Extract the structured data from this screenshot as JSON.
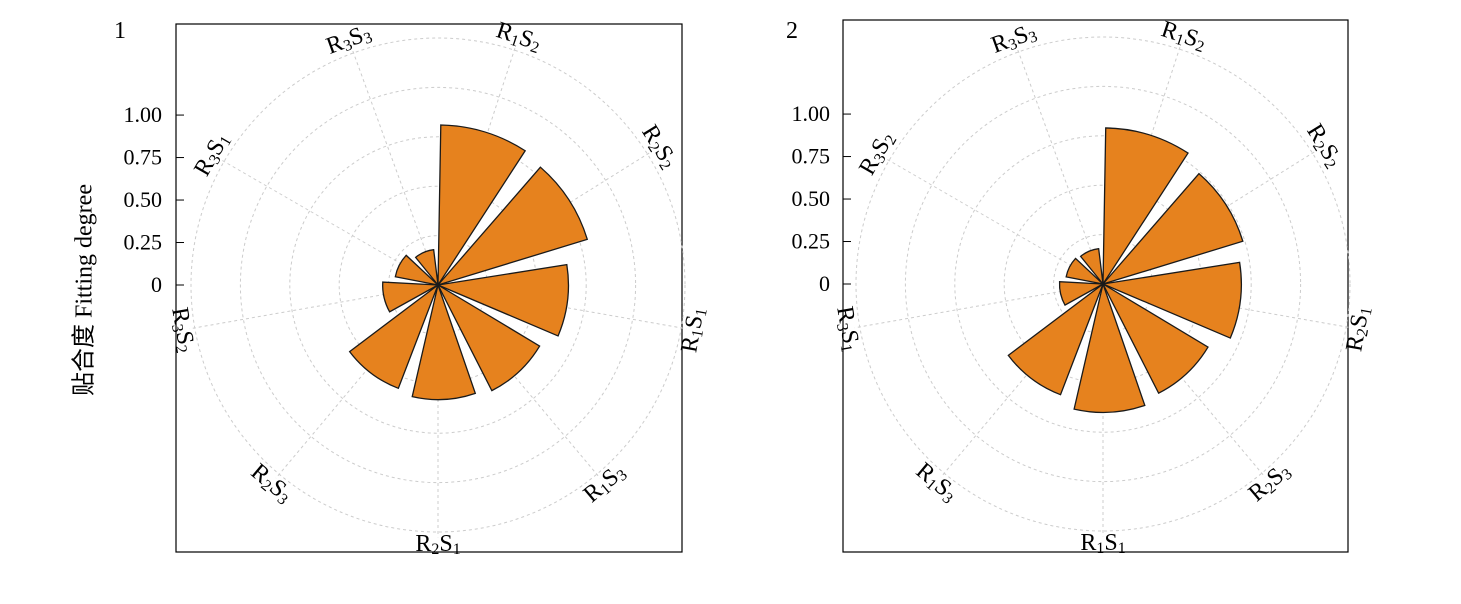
{
  "ylabel": "贴合度 Fitting degree",
  "colors": {
    "wedge_fill": "#E6821E",
    "wedge_stroke": "#1a1a1a",
    "grid": "#cccccc",
    "frame": "#000000"
  },
  "chart_data": [
    {
      "type": "polar-bar",
      "panel_label": "1",
      "radial_ticks": [
        "0",
        "0.25",
        "0.50",
        "0.75",
        "1.00"
      ],
      "radial_tick_values": [
        0,
        0.25,
        0.5,
        0.75,
        1.0
      ],
      "rlim": [
        0,
        1.0
      ],
      "grid": true,
      "categories": [
        "R1S2",
        "R2S2",
        "R1S1",
        "R1S3",
        "R2S1",
        "R2S3",
        "R3S2",
        "R3S1",
        "R3S3"
      ],
      "category_labels": [
        {
          "base1": "R",
          "sub1": "1",
          "base2": "S",
          "sub2": "2"
        },
        {
          "base1": "R",
          "sub1": "2",
          "base2": "S",
          "sub2": "2"
        },
        {
          "base1": "R",
          "sub1": "1",
          "base2": "S",
          "sub2": "1"
        },
        {
          "base1": "R",
          "sub1": "1",
          "base2": "S",
          "sub2": "3"
        },
        {
          "base1": "R",
          "sub1": "2",
          "base2": "S",
          "sub2": "1"
        },
        {
          "base1": "R",
          "sub1": "2",
          "base2": "S",
          "sub2": "3"
        },
        {
          "base1": "R",
          "sub1": "3",
          "base2": "S",
          "sub2": "2"
        },
        {
          "base1": "R",
          "sub1": "3",
          "base2": "S",
          "sub2": "1"
        },
        {
          "base1": "R",
          "sub1": "3",
          "base2": "S",
          "sub2": "3"
        }
      ],
      "values": [
        0.81,
        0.79,
        0.66,
        0.6,
        0.58,
        0.56,
        0.28,
        0.22,
        0.18
      ]
    },
    {
      "type": "polar-bar",
      "panel_label": "2",
      "radial_ticks": [
        "0",
        "0.25",
        "0.50",
        "0.75",
        "1.00"
      ],
      "radial_tick_values": [
        0,
        0.25,
        0.5,
        0.75,
        1.0
      ],
      "rlim": [
        0,
        1.0
      ],
      "grid": true,
      "categories": [
        "R1S2",
        "R2S2",
        "R2S1",
        "R2S3",
        "R1S1",
        "R1S3",
        "R3S1",
        "R3S2",
        "R3S3"
      ],
      "category_labels": [
        {
          "base1": "R",
          "sub1": "1",
          "base2": "S",
          "sub2": "2"
        },
        {
          "base1": "R",
          "sub1": "2",
          "base2": "S",
          "sub2": "2"
        },
        {
          "base1": "R",
          "sub1": "2",
          "base2": "S",
          "sub2": "1"
        },
        {
          "base1": "R",
          "sub1": "2",
          "base2": "S",
          "sub2": "3"
        },
        {
          "base1": "R",
          "sub1": "1",
          "base2": "S",
          "sub2": "1"
        },
        {
          "base1": "R",
          "sub1": "1",
          "base2": "S",
          "sub2": "3"
        },
        {
          "base1": "R",
          "sub1": "3",
          "base2": "S",
          "sub2": "1"
        },
        {
          "base1": "R",
          "sub1": "3",
          "base2": "S",
          "sub2": "2"
        },
        {
          "base1": "R",
          "sub1": "3",
          "base2": "S",
          "sub2": "3"
        }
      ],
      "values": [
        0.79,
        0.74,
        0.7,
        0.62,
        0.65,
        0.6,
        0.22,
        0.19,
        0.18
      ]
    }
  ]
}
